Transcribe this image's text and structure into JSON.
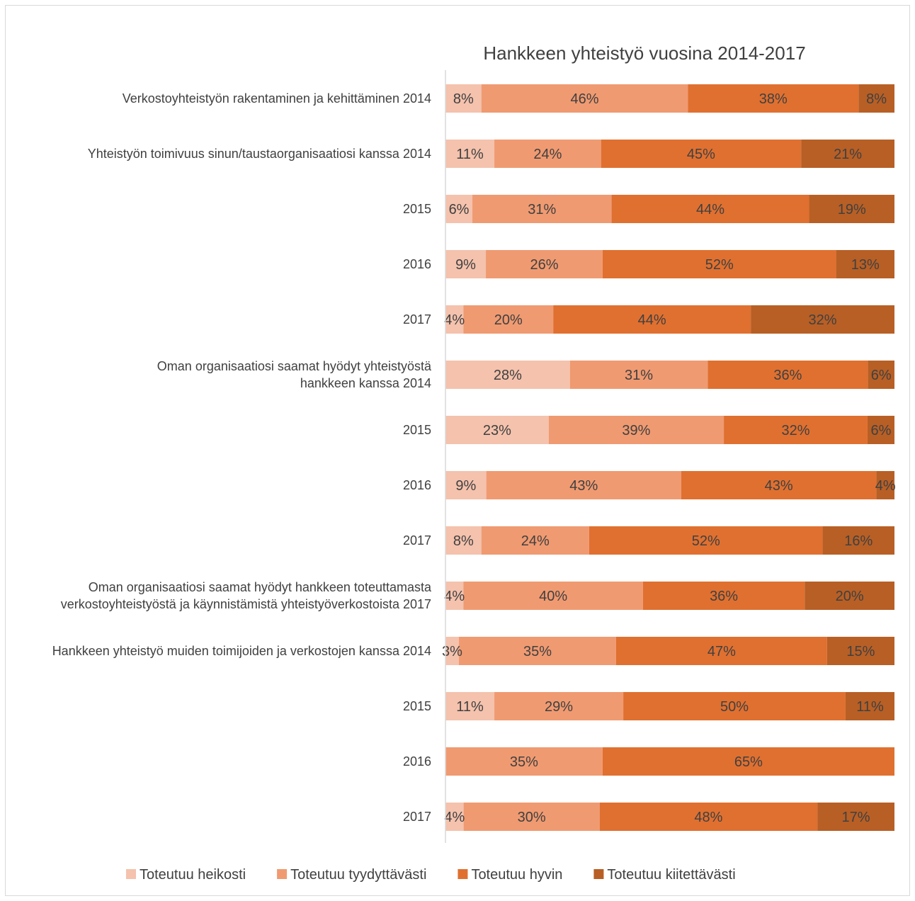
{
  "chart_data": {
    "type": "bar",
    "orientation": "horizontal",
    "stacked": "percent",
    "title": "Hankkeen yhteistyö vuosina 2014-2017",
    "categories": [
      [
        "Verkostoyhteistyön rakentaminen ja kehittäminen 2014"
      ],
      [
        "Yhteistyön toimivuus sinun/taustaorganisaatiosi kanssa 2014"
      ],
      [
        "2015"
      ],
      [
        "2016"
      ],
      [
        "2017"
      ],
      [
        "Oman organisaatiosi saamat hyödyt yhteistyöstä",
        "hankkeen kanssa 2014"
      ],
      [
        "2015"
      ],
      [
        "2016"
      ],
      [
        "2017"
      ],
      [
        "Oman organisaatiosi saamat hyödyt hankkeen toteuttamasta",
        "verkostoyhteistyöstä ja käynnistämistä yhteistyöverkostoista 2017"
      ],
      [
        "Hankkeen yhteistyö muiden toimijoiden ja verkostojen kanssa 2014"
      ],
      [
        "2015"
      ],
      [
        "2016"
      ],
      [
        "2017"
      ]
    ],
    "series": [
      {
        "name": "Toteutuu heikosti",
        "color": "#f4c2ad",
        "values": [
          8,
          11,
          6,
          9,
          4,
          28,
          23,
          9,
          8,
          4,
          3,
          11,
          0,
          4
        ]
      },
      {
        "name": "Toteutuu tyydyttävästi",
        "color": "#f09a71",
        "values": [
          46,
          24,
          31,
          26,
          20,
          31,
          39,
          43,
          24,
          40,
          35,
          29,
          35,
          30
        ]
      },
      {
        "name": "Toteutuu hyvin",
        "color": "#e07030",
        "values": [
          38,
          45,
          44,
          52,
          44,
          36,
          32,
          43,
          52,
          36,
          47,
          50,
          65,
          48
        ]
      },
      {
        "name": "Toteutuu kiitettävästi",
        "color": "#b85f25",
        "values": [
          8,
          21,
          19,
          13,
          32,
          6,
          6,
          4,
          16,
          20,
          15,
          11,
          0,
          17
        ]
      }
    ],
    "value_suffix": "%",
    "legend_position": "bottom",
    "grid": false
  }
}
